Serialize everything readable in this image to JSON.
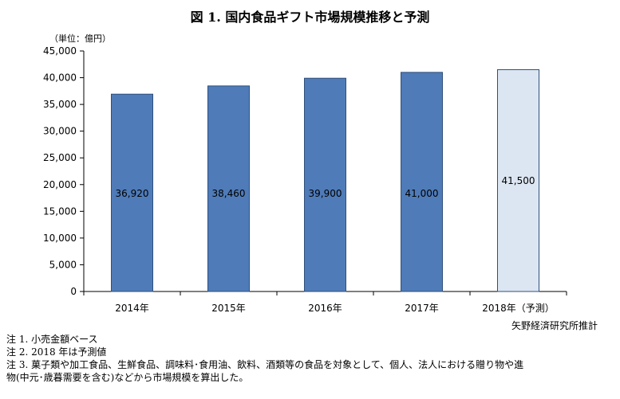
{
  "chart_data": {
    "type": "bar",
    "title": "図 1. 国内食品ギフト市場規模推移と予測",
    "unit_label": "（単位：億円）",
    "categories": [
      "2014年",
      "2015年",
      "2016年",
      "2017年",
      "2018年（予測）"
    ],
    "values": [
      36920,
      38460,
      39900,
      41000,
      41500
    ],
    "value_labels": [
      "36,920",
      "38,460",
      "39,900",
      "41,000",
      "41,500"
    ],
    "forecast": [
      false,
      false,
      false,
      false,
      true
    ],
    "ylim": [
      0,
      45000
    ],
    "yticks": [
      0,
      5000,
      10000,
      15000,
      20000,
      25000,
      30000,
      35000,
      40000,
      45000
    ],
    "ytick_labels": [
      "0",
      "5,000",
      "10,000",
      "15,000",
      "20,000",
      "25,000",
      "30,000",
      "35,000",
      "40,000",
      "45,000"
    ],
    "grid": false,
    "colors": {
      "actual": "#4f7bb8",
      "forecast": "#dce6f2",
      "outline": "#2f4f7a"
    }
  },
  "source": "矢野経済研究所推計",
  "notes": [
    "注 1. 小売金額ベース",
    "注 2. 2018 年は予測値",
    "注 3. 菓子類や加工食品、生鮮食品、調味料･食用油、飲料、酒類等の食品を対象として、個人、法人における贈り物や進",
    "物(中元･歳暮需要を含む)などから市場規模を算出した。"
  ]
}
